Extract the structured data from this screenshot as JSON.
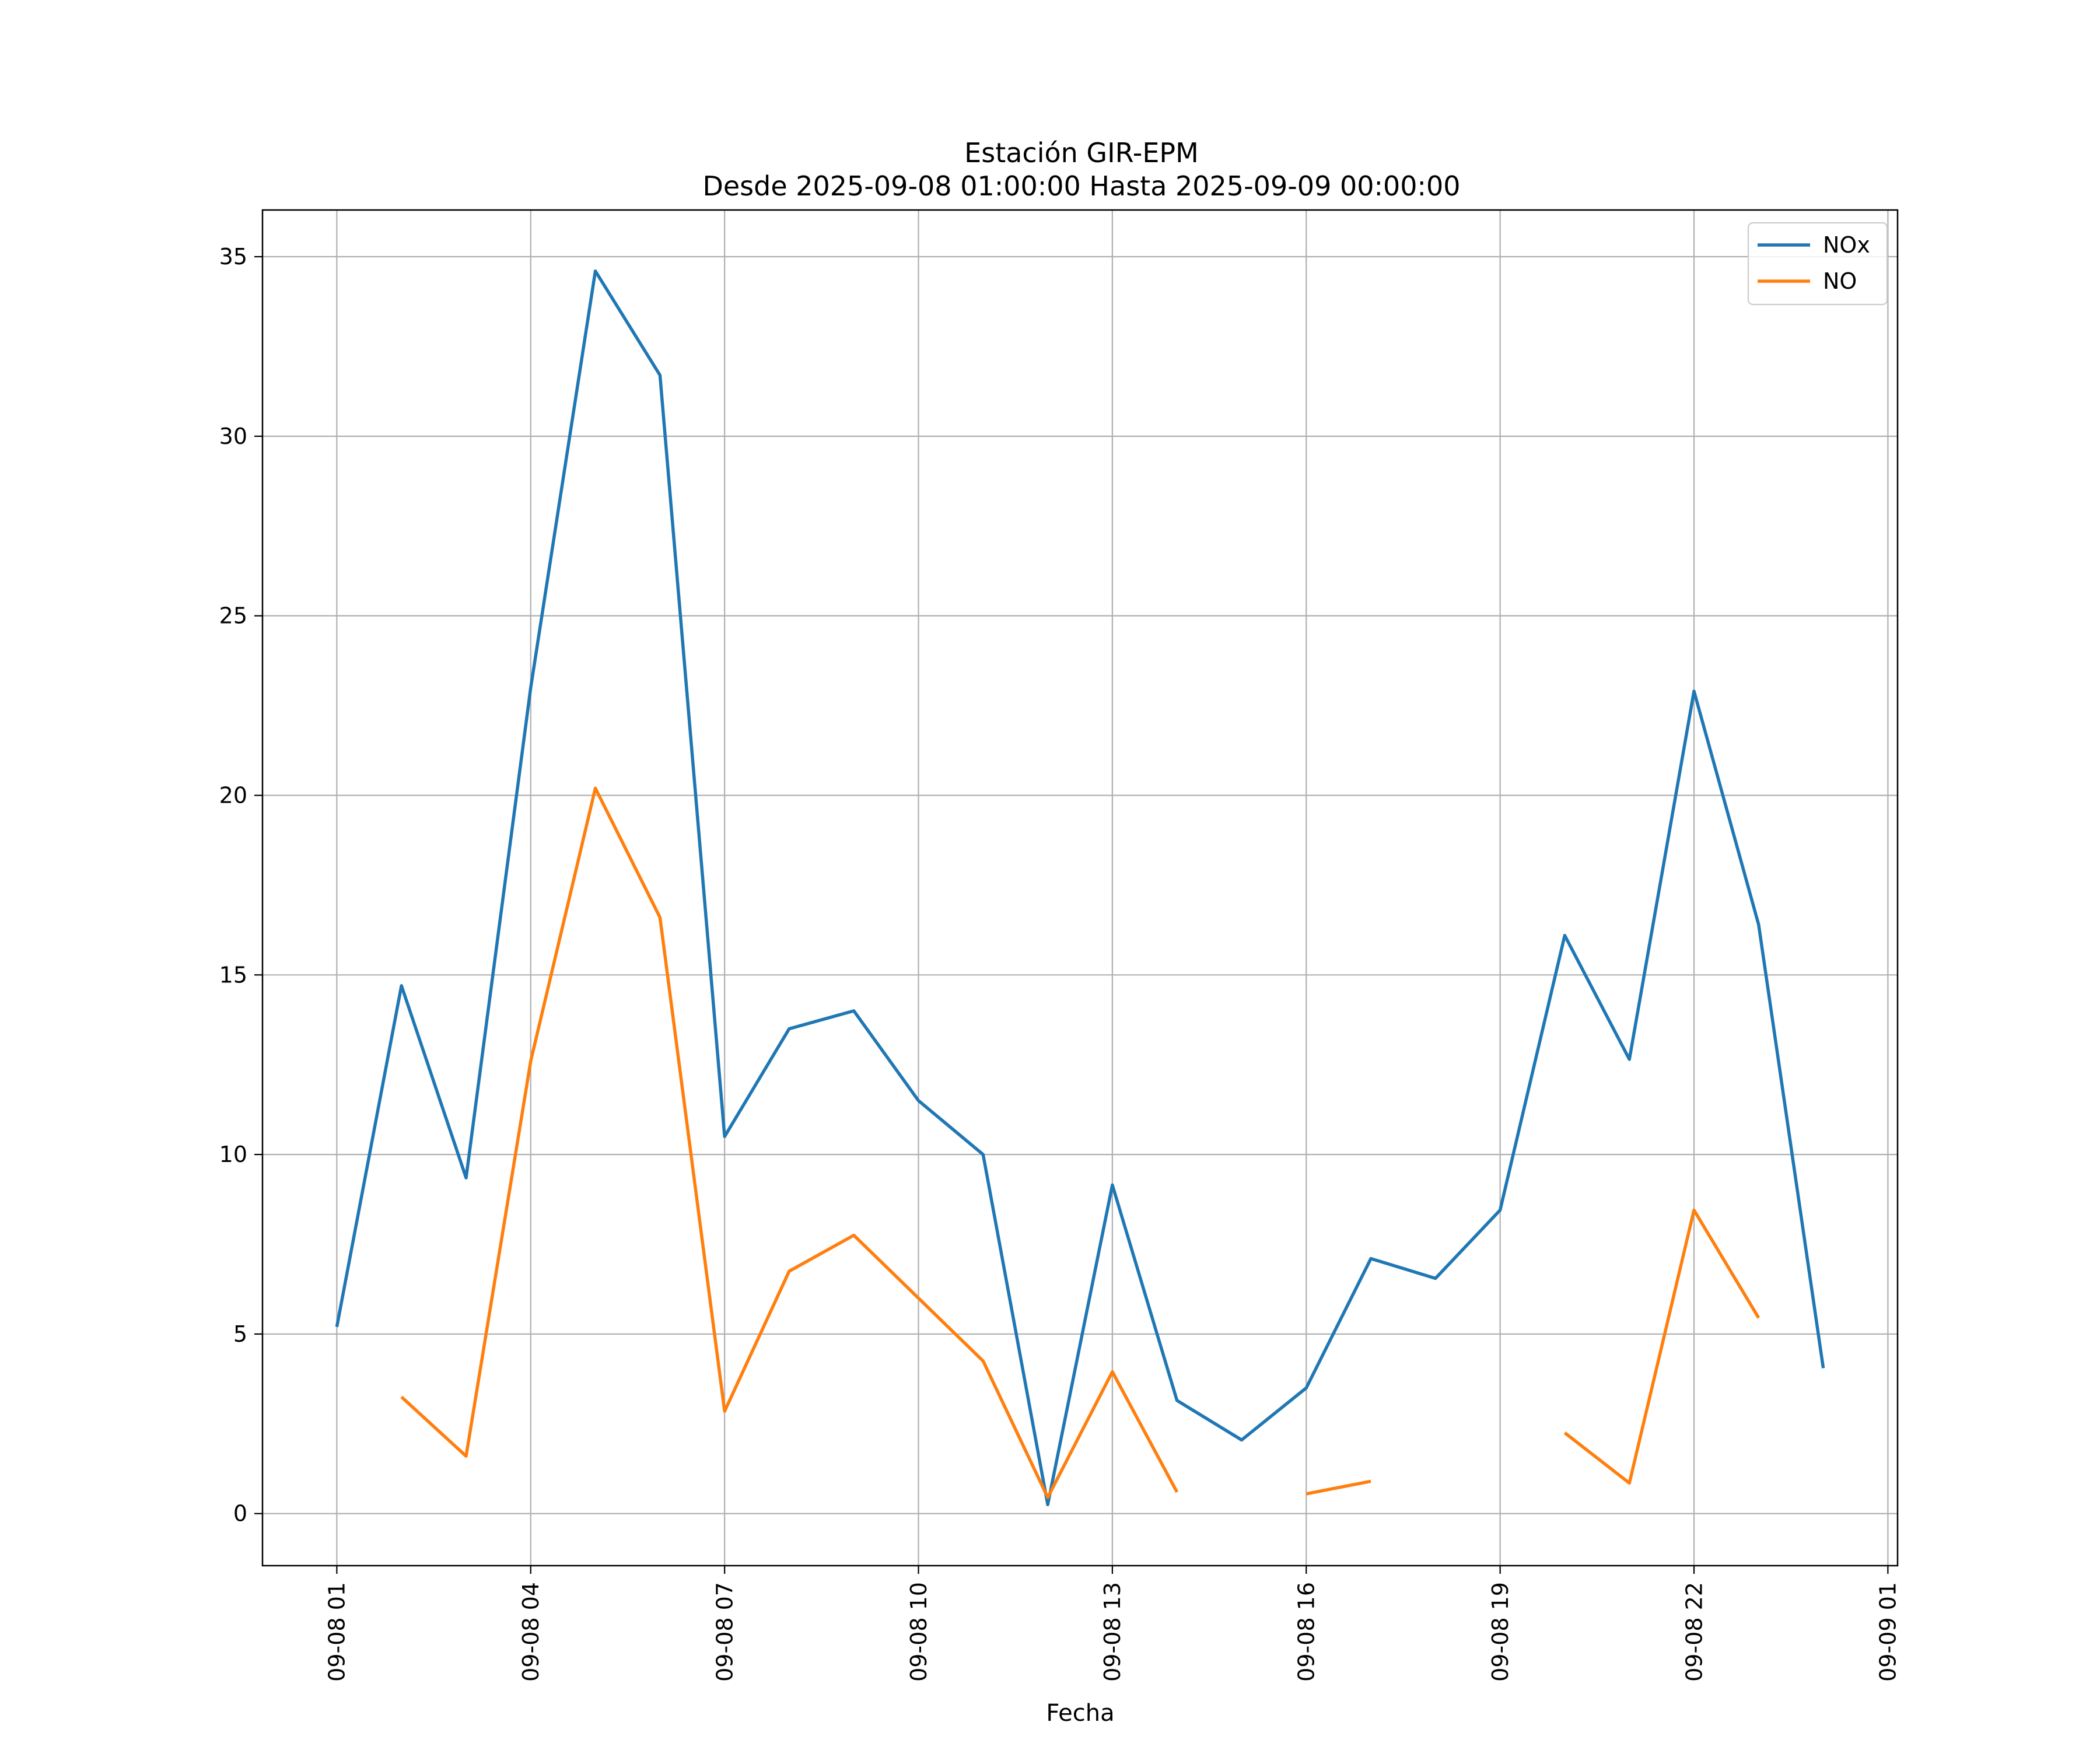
{
  "chart_data": {
    "type": "line",
    "title": "Estación GIR-EPM",
    "subtitle": "Desde 2025-09-08 01:00:00 Hasta 2025-09-09 00:00:00",
    "xlabel": "Fecha",
    "ylabel": "",
    "x": [
      "2025-09-08 01:00",
      "2025-09-08 02:00",
      "2025-09-08 03:00",
      "2025-09-08 04:00",
      "2025-09-08 05:00",
      "2025-09-08 06:00",
      "2025-09-08 07:00",
      "2025-09-08 08:00",
      "2025-09-08 09:00",
      "2025-09-08 10:00",
      "2025-09-08 11:00",
      "2025-09-08 12:00",
      "2025-09-08 13:00",
      "2025-09-08 14:00",
      "2025-09-08 15:00",
      "2025-09-08 16:00",
      "2025-09-08 17:00",
      "2025-09-08 18:00",
      "2025-09-08 19:00",
      "2025-09-08 20:00",
      "2025-09-08 21:00",
      "2025-09-08 22:00",
      "2025-09-08 23:00",
      "2025-09-09 00:00"
    ],
    "x_range": [
      "2025-09-07 23:51",
      "2025-09-09 01:09"
    ],
    "x_ticks": [
      "2025-09-08 01:00",
      "2025-09-08 04:00",
      "2025-09-08 07:00",
      "2025-09-08 10:00",
      "2025-09-08 13:00",
      "2025-09-08 16:00",
      "2025-09-08 19:00",
      "2025-09-08 22:00",
      "2025-09-09 01:00"
    ],
    "x_tick_labels": [
      "09-08 01",
      "09-08 04",
      "09-08 07",
      "09-08 10",
      "09-08 13",
      "09-08 16",
      "09-08 19",
      "09-08 22",
      "09-09 01"
    ],
    "ylim": [
      -1.45,
      36.3
    ],
    "y_ticks": [
      0,
      5,
      10,
      15,
      20,
      25,
      30,
      35
    ],
    "y_tick_labels": [
      "0",
      "5",
      "10",
      "15",
      "20",
      "25",
      "30",
      "35"
    ],
    "grid": true,
    "legend_position": "top-right",
    "series": [
      {
        "name": "NOx",
        "color": "#1f77b4",
        "values": [
          5.2,
          14.7,
          9.35,
          23.0,
          34.6,
          31.7,
          10.5,
          13.5,
          14.0,
          11.5,
          10.0,
          0.25,
          9.15,
          3.15,
          2.05,
          3.5,
          7.1,
          6.55,
          8.45,
          16.1,
          12.65,
          22.9,
          16.4,
          4.05
        ]
      },
      {
        "name": "NO",
        "color": "#ff7f0e",
        "values": [
          null,
          3.25,
          1.6,
          12.6,
          20.2,
          16.6,
          2.85,
          6.75,
          7.75,
          6.0,
          4.25,
          0.45,
          3.95,
          0.6,
          null,
          0.55,
          0.9,
          null,
          null,
          2.25,
          0.85,
          8.45,
          5.45,
          null
        ]
      }
    ]
  }
}
